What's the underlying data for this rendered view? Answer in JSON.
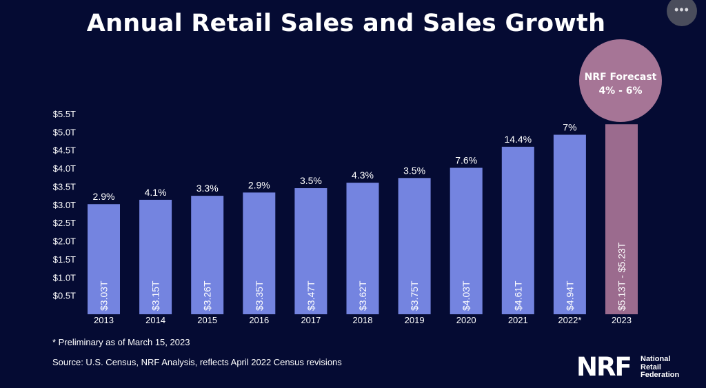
{
  "menu": {
    "icon": "more-dots-icon",
    "label": "•••"
  },
  "chart_data": {
    "type": "bar",
    "title": "Annual Retail Sales and Sales Growth",
    "categories": [
      "2013",
      "2014",
      "2015",
      "2016",
      "2017",
      "2018",
      "2019",
      "2020",
      "2021",
      "2022*",
      "2023"
    ],
    "values": [
      3.03,
      3.15,
      3.26,
      3.35,
      3.47,
      3.62,
      3.75,
      4.03,
      4.61,
      4.94,
      5.23
    ],
    "value_labels": [
      "$3.03T",
      "$3.15T",
      "$3.26T",
      "$3.35T",
      "$3.47T",
      "$3.62T",
      "$3.75T",
      "$4.03T",
      "$4.61T",
      "$4.94T",
      "$5.13T - $5.23T"
    ],
    "growth_labels": [
      "2.9%",
      "4.1%",
      "3.3%",
      "2.9%",
      "3.5%",
      "4.3%",
      "3.5%",
      "7.6%",
      "14.4%",
      "7%",
      ""
    ],
    "y_ticks": [
      0.5,
      1.0,
      1.5,
      2.0,
      2.5,
      3.0,
      3.5,
      4.0,
      4.5,
      5.0,
      5.5
    ],
    "y_tick_labels": [
      "$0.5T",
      "$1.0T",
      "$1.5T",
      "$2.0T",
      "$2.5T",
      "$3.0T",
      "$3.5T",
      "$4.0T",
      "$4.5T",
      "$5.0T",
      "$5.5T"
    ],
    "ylim": [
      0.05,
      5.5
    ],
    "grid": false,
    "forecast_index": 10,
    "forecast_label": [
      "NRF Forecast",
      "4% - 6%"
    ],
    "colors": {
      "bar": "#7484e0",
      "forecast_bar": "#9b6b8e",
      "forecast_bubble": "#a67596",
      "background": "#050b33"
    }
  },
  "footnote": "* Preliminary as of March 15, 2023",
  "source": "Source: U.S. Census, NRF Analysis, reflects April 2022 Census revisions",
  "logo": {
    "mark": "NRF",
    "name_lines": [
      "National",
      "Retail",
      "Federation"
    ]
  }
}
